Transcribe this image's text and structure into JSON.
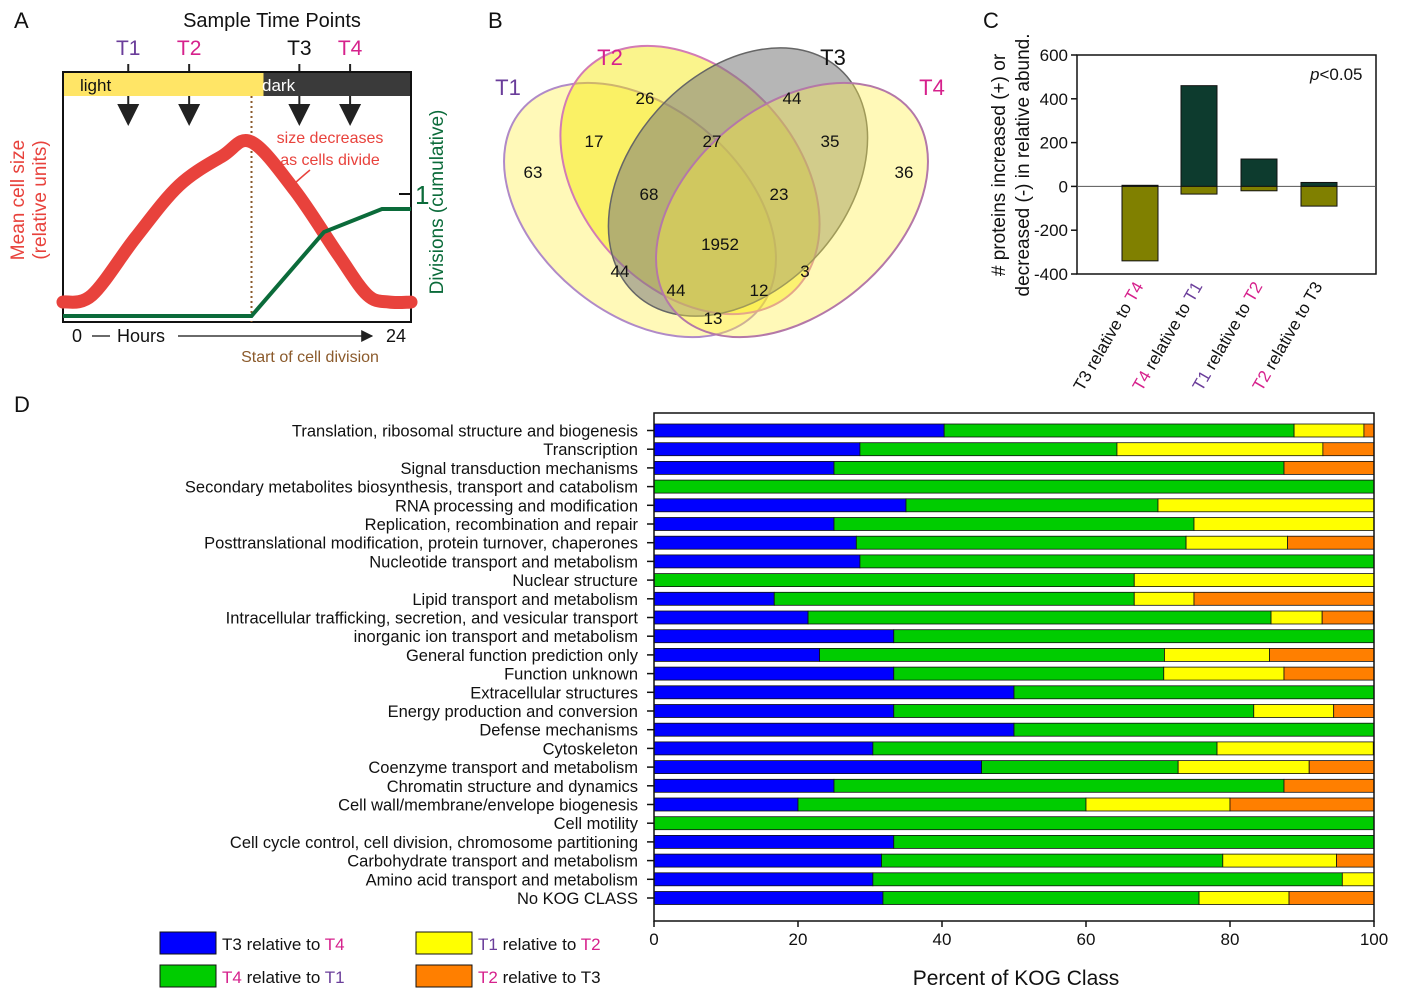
{
  "colors": {
    "purple": "#6a3d9a",
    "magenta": "#d6218c",
    "red": "#e8423c",
    "green_dark": "#0b6b3a",
    "brown": "#8b5a2b",
    "blue": "#0000ff",
    "green": "#00cc00",
    "yellow": "#ffff00",
    "orange": "#ff7f00",
    "bar_teal": "#0d3b2e",
    "bar_olive": "#808000"
  },
  "panels": {
    "a": "A",
    "b": "B",
    "c": "C",
    "d": "D"
  },
  "panel_a": {
    "title": "Sample Time Points",
    "timepoints": [
      {
        "label": "T1",
        "color": "purple",
        "hour": 4.5
      },
      {
        "label": "T2",
        "color": "magenta",
        "hour": 8.7
      },
      {
        "label": "T3",
        "color": "dark",
        "hour": 16.3
      },
      {
        "label": "T4",
        "color": "magenta",
        "hour": 19.8
      }
    ],
    "light_label": "light",
    "dark_label": "dark",
    "light_dark_boundary_hour": 13,
    "annotation": "size decreases\nas cells divide",
    "ylabel_left": "Mean cell size\n(relative units)",
    "ylabel_right": "Divisions (cumulative)",
    "right_tick": "1",
    "x_start": "0",
    "x_mid": "Hours",
    "x_end": "24",
    "division_label": "Start of cell division",
    "cell_size_curve": [
      [
        0,
        0.08
      ],
      [
        2,
        0.12
      ],
      [
        5,
        0.45
      ],
      [
        8,
        0.75
      ],
      [
        11,
        0.92
      ],
      [
        13,
        1.0
      ],
      [
        16,
        0.72
      ],
      [
        19,
        0.35
      ],
      [
        21,
        0.12
      ],
      [
        22.5,
        0.08
      ],
      [
        24,
        0.08
      ]
    ],
    "divisions_curve": [
      [
        0,
        0
      ],
      [
        13,
        0
      ],
      [
        18,
        0.73
      ],
      [
        22,
        0.93
      ],
      [
        24,
        0.93
      ]
    ]
  },
  "panel_b": {
    "set_labels": [
      "T1",
      "T2",
      "T3",
      "T4"
    ],
    "counts": [
      "26",
      "44",
      "17",
      "27",
      "35",
      "63",
      "36",
      "68",
      "23",
      "1952",
      "44",
      "3",
      "44",
      "12",
      "13"
    ]
  },
  "panel_c": {
    "pvalue_italic": "p",
    "pvalue_rest": "<0.05",
    "ylabel_line1": "# proteins increased (+) or",
    "ylabel_line2": "decreased (-) in relative abund.",
    "ylim": [
      -400,
      600
    ],
    "yticks": [
      "600",
      "400",
      "200",
      "0",
      "-200",
      "-400"
    ],
    "categories": [
      {
        "a": "T3",
        "a_color": "dark",
        "b": "T4",
        "b_color": "magenta",
        "mid": " relative to "
      },
      {
        "a": "T4",
        "a_color": "magenta",
        "b": "T1",
        "b_color": "purple",
        "mid": " relative to "
      },
      {
        "a": "T1",
        "a_color": "purple",
        "b": "T2",
        "b_color": "magenta",
        "mid": " relative to "
      },
      {
        "a": "T2",
        "a_color": "magenta",
        "b": "T3",
        "b_color": "dark",
        "mid": " relative to "
      }
    ],
    "increased": [
      5,
      460,
      125,
      18
    ],
    "decreased": [
      -340,
      -35,
      -20,
      -90
    ]
  },
  "chart_data": {
    "type": "bar",
    "orientation": "horizontal-stacked",
    "xlabel": "Percent of KOG Class",
    "xlim": [
      0,
      100
    ],
    "xticks": [
      "0",
      "20",
      "40",
      "60",
      "80",
      "100"
    ],
    "categories": [
      "Translation, ribosomal structure and biogenesis",
      "Transcription",
      "Signal transduction mechanisms",
      "Secondary metabolites biosynthesis, transport and catabolism",
      "RNA processing and modification",
      "Replication, recombination and repair",
      "Posttranslational modification, protein turnover, chaperones",
      "Nucleotide transport and metabolism",
      "Nuclear structure",
      "Lipid transport and metabolism",
      "Intracellular trafficking, secretion, and vesicular transport",
      "inorganic ion transport and metabolism",
      "General function prediction only",
      "Function unknown",
      "Extracellular structures",
      "Energy production and conversion",
      "Defense mechanisms",
      "Cytoskeleton",
      "Coenzyme transport and metabolism",
      "Chromatin structure and dynamics",
      "Cell wall/membrane/envelope biogenesis",
      "Cell motility",
      "Cell cycle control, cell division, chromosome partitioning",
      "Carbohydrate transport and metabolism",
      "Amino acid transport and metabolism",
      "No KOG CLASS"
    ],
    "series": [
      {
        "name": "T3 relative to T4",
        "color": "blue",
        "values": [
          40.3,
          28.6,
          25.0,
          0,
          35.0,
          25.0,
          28.1,
          28.6,
          0,
          16.7,
          21.4,
          33.3,
          23.0,
          33.3,
          50.0,
          33.3,
          50.0,
          30.4,
          45.5,
          25.0,
          20.0,
          0,
          33.3,
          31.6,
          30.4,
          31.8
        ]
      },
      {
        "name": "T4 relative to T1",
        "color": "green",
        "values": [
          48.6,
          35.7,
          62.5,
          100,
          35.0,
          50.0,
          45.8,
          71.4,
          66.7,
          50.0,
          64.3,
          66.7,
          47.9,
          37.5,
          50.0,
          50.0,
          50.0,
          47.8,
          27.3,
          62.5,
          40.0,
          100,
          66.7,
          47.4,
          65.2,
          43.9
        ]
      },
      {
        "name": "T1 relative to T2",
        "color": "yellow",
        "values": [
          9.7,
          28.6,
          0,
          0,
          30.0,
          25.0,
          14.1,
          0,
          33.3,
          8.3,
          7.1,
          0,
          14.6,
          16.7,
          0,
          11.1,
          0,
          21.7,
          18.2,
          0,
          20.0,
          0,
          0,
          15.8,
          4.4,
          12.5
        ]
      },
      {
        "name": "T2 relative to T3",
        "color": "orange",
        "values": [
          1.4,
          7.1,
          12.5,
          0,
          0,
          0,
          12.0,
          0,
          0,
          25.0,
          7.1,
          0,
          14.5,
          12.5,
          0,
          5.6,
          0,
          0,
          9.0,
          12.5,
          20.0,
          0,
          0,
          5.2,
          0,
          11.8
        ]
      }
    ],
    "legend": [
      {
        "a": "T3",
        "a_color": "dark",
        "b": "T4",
        "b_color": "magenta",
        "swatch": "blue"
      },
      {
        "a": "T1",
        "a_color": "purple",
        "b": "T2",
        "b_color": "magenta",
        "swatch": "yellow"
      },
      {
        "a": "T4",
        "a_color": "magenta",
        "b": "T1",
        "b_color": "purple",
        "swatch": "green"
      },
      {
        "a": "T2",
        "a_color": "magenta",
        "b": "T3",
        "b_color": "dark",
        "swatch": "orange"
      }
    ],
    "legend_mid": " relative to ",
    "legend_placement": "bottom-left"
  }
}
